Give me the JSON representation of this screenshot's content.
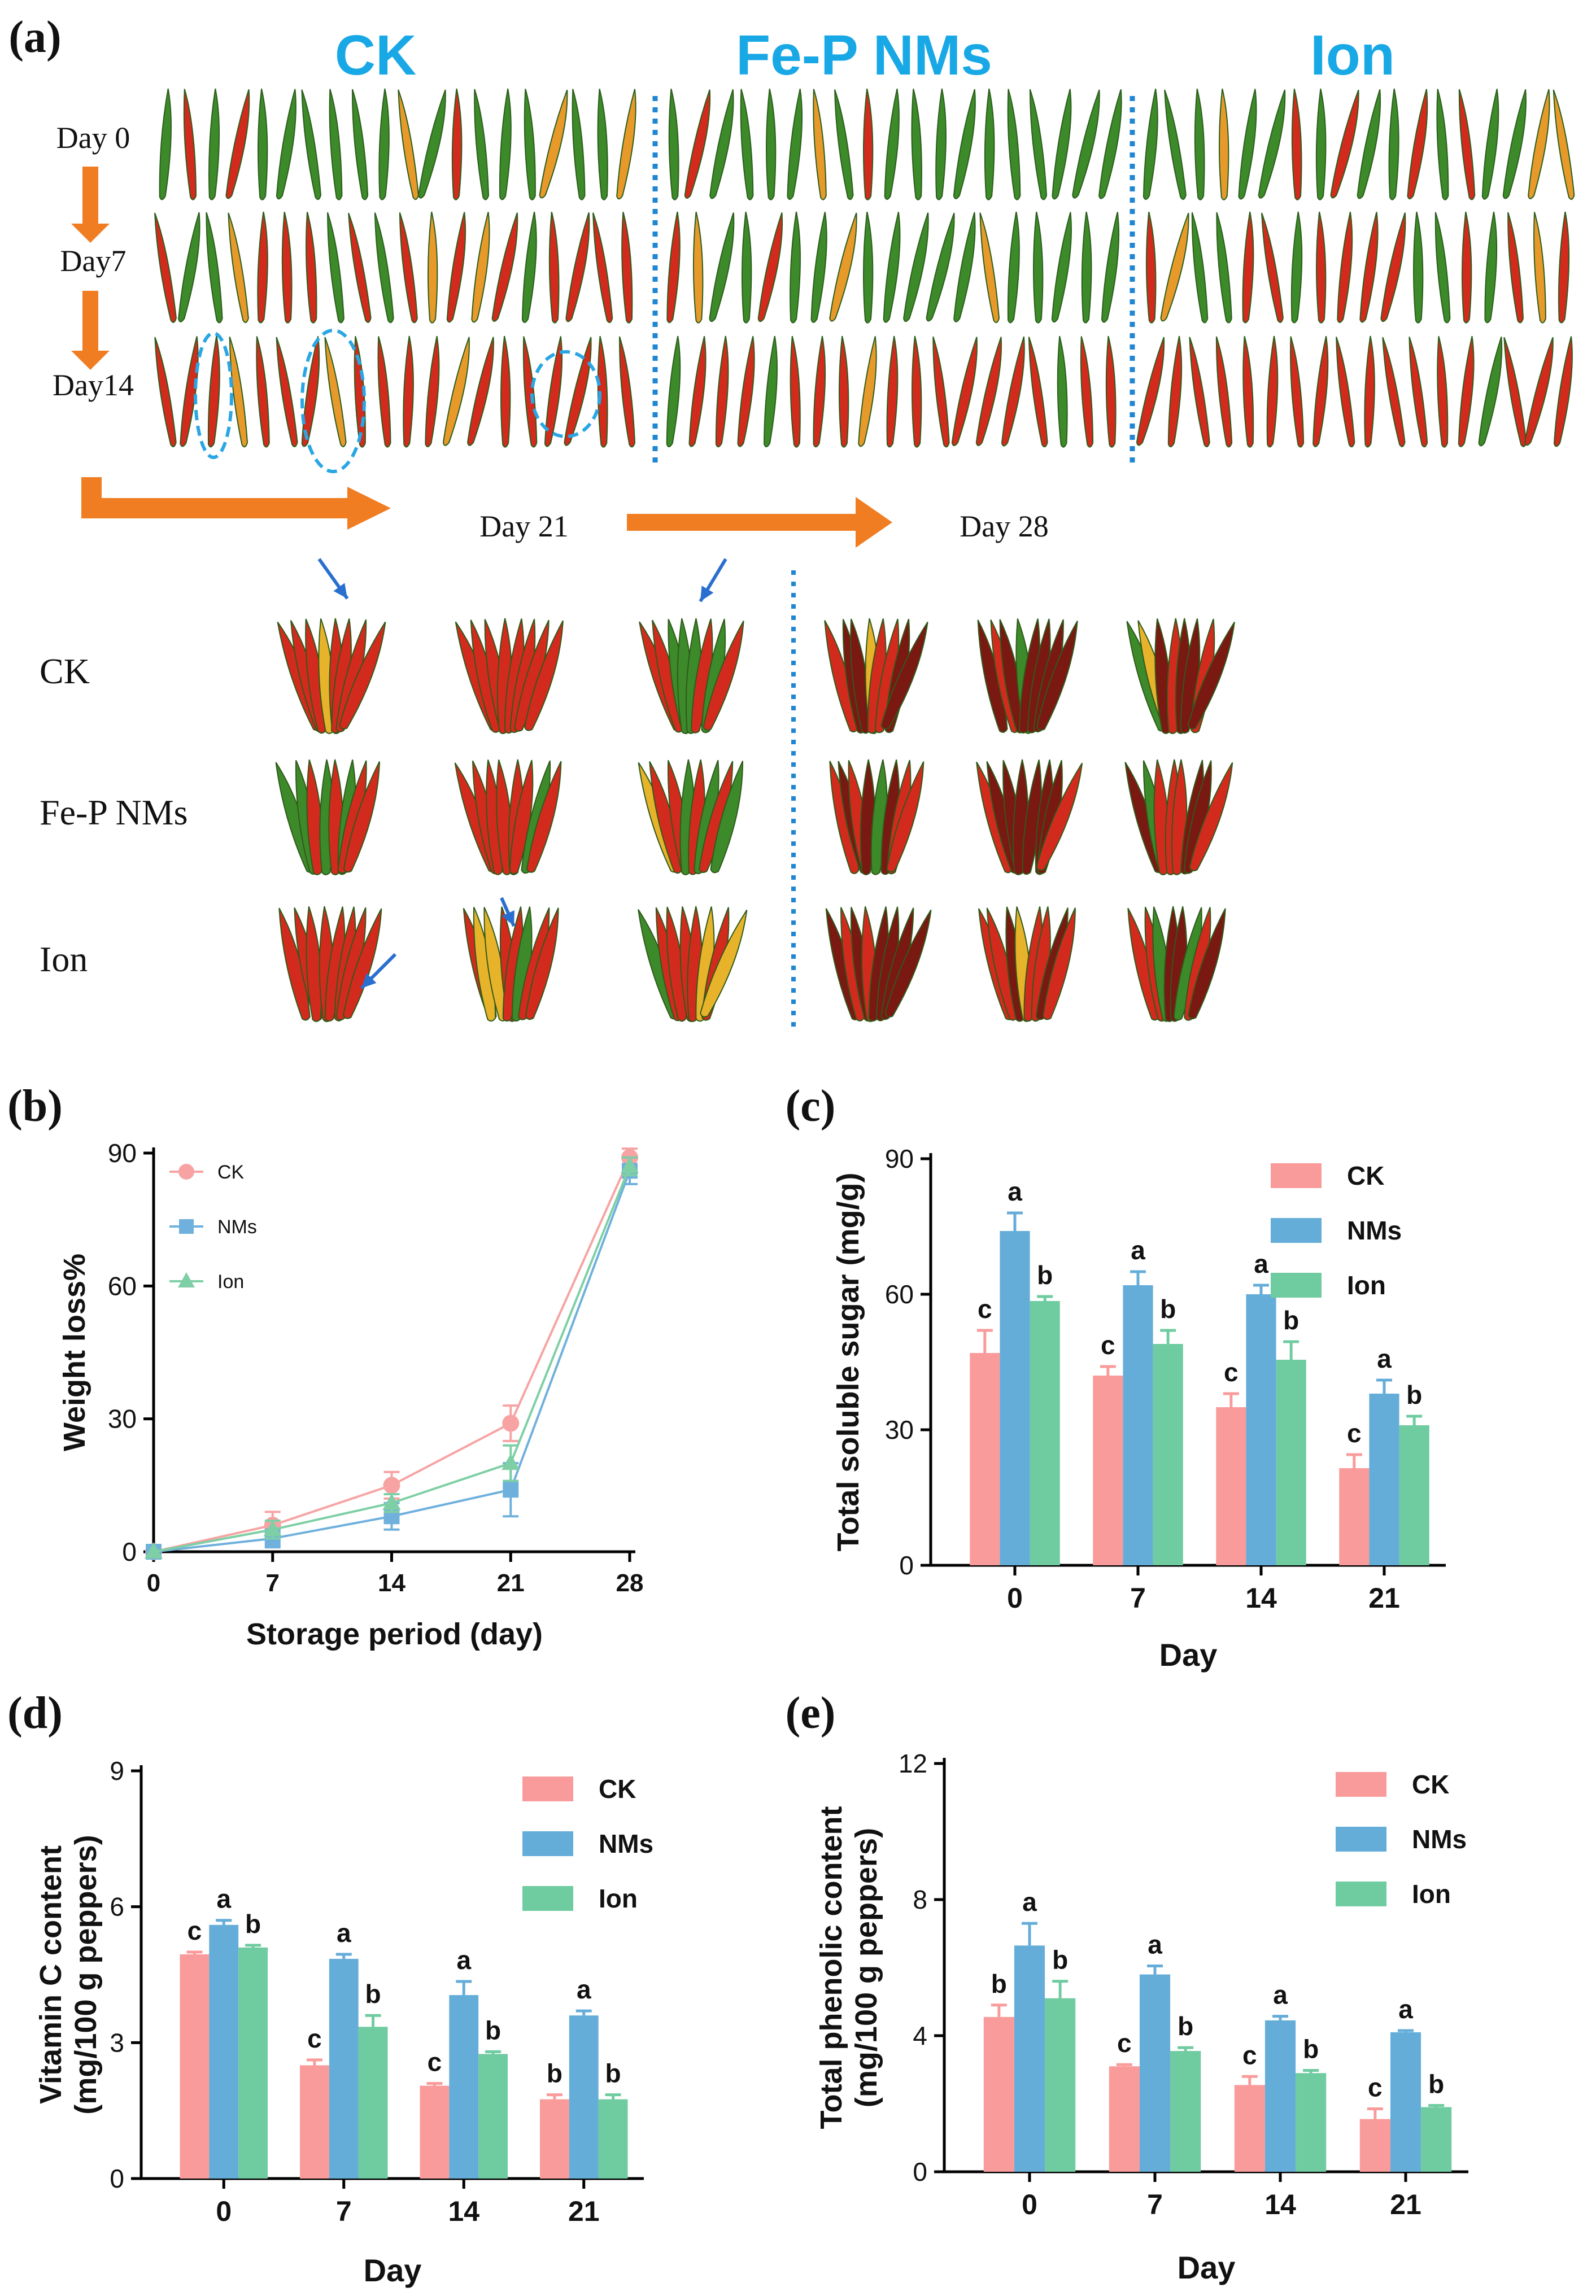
{
  "panel_a": {
    "label": "(a)",
    "groups": [
      "CK",
      "Fe-P NMs",
      "Ion"
    ],
    "day_rows": [
      "Day 0",
      "Day7",
      "Day14"
    ],
    "later_days": [
      "Day 21",
      "Day 28"
    ],
    "sample_rows": [
      "CK",
      "Fe-P NMs",
      "Ion"
    ],
    "colors": {
      "title": "#19a8e6",
      "arrow": "#f07d22",
      "divider": "#1f86d2",
      "pepper_red": "#d32a1e",
      "pepper_green": "#3d8a2a"
    }
  },
  "chart_data": [
    {
      "panel": "(b)",
      "type": "line",
      "title": "",
      "xlabel": "Storage period (day)",
      "ylabel": "Weight loss%",
      "x": [
        0,
        7,
        14,
        21,
        28
      ],
      "xlim": [
        0,
        28
      ],
      "ylim": [
        0,
        90
      ],
      "yticks": [
        0,
        30,
        60,
        90
      ],
      "legend": "top-left",
      "series": [
        {
          "name": "CK",
          "color": "#f7a3a3",
          "marker": "circle",
          "values": [
            0,
            6,
            15,
            29,
            89
          ],
          "err": [
            0,
            3,
            3,
            4,
            2
          ]
        },
        {
          "name": "NMs",
          "color": "#6fb0dc",
          "marker": "square",
          "values": [
            0,
            3,
            8,
            14,
            86
          ],
          "err": [
            0,
            2,
            3,
            6,
            3
          ]
        },
        {
          "name": "Ion",
          "color": "#7ecfa5",
          "marker": "triangle",
          "values": [
            0,
            5,
            11,
            20,
            87
          ],
          "err": [
            0,
            2,
            2,
            4,
            2
          ]
        }
      ]
    },
    {
      "panel": "(c)",
      "type": "bar",
      "title": "",
      "xlabel": "Day",
      "ylabel": "Total soluble sugar (mg/g)",
      "categories": [
        "0",
        "7",
        "14",
        "21"
      ],
      "ylim": [
        0,
        90
      ],
      "yticks": [
        0,
        30,
        60,
        90
      ],
      "legend": "top-right",
      "series": [
        {
          "name": "CK",
          "color": "#fa9b9b",
          "values": [
            47,
            42,
            35,
            21.5
          ],
          "err": [
            5,
            2,
            3,
            3
          ],
          "letters": [
            "c",
            "c",
            "c",
            "c"
          ]
        },
        {
          "name": "NMs",
          "color": "#65add9",
          "values": [
            74,
            62,
            60,
            38
          ],
          "err": [
            4,
            3,
            2,
            3
          ],
          "letters": [
            "a",
            "a",
            "a",
            "a"
          ]
        },
        {
          "name": "Ion",
          "color": "#6fcba0",
          "values": [
            58.5,
            49,
            45.5,
            31
          ],
          "err": [
            1,
            3,
            4,
            2
          ],
          "letters": [
            "b",
            "b",
            "b",
            "b"
          ]
        }
      ]
    },
    {
      "panel": "(d)",
      "type": "bar",
      "title": "",
      "xlabel": "Day",
      "ylabel": [
        "Vitamin C content",
        "(mg/100 g peppers)"
      ],
      "categories": [
        "0",
        "7",
        "14",
        "21"
      ],
      "ylim": [
        0,
        9
      ],
      "yticks": [
        0,
        3,
        6,
        9
      ],
      "legend": "top-right",
      "series": [
        {
          "name": "CK",
          "color": "#fa9b9b",
          "values": [
            4.95,
            2.5,
            2.05,
            1.75
          ],
          "err": [
            0.05,
            0.12,
            0.05,
            0.1
          ],
          "letters": [
            "c",
            "c",
            "c",
            "b"
          ]
        },
        {
          "name": "NMs",
          "color": "#65add9",
          "values": [
            5.6,
            4.85,
            4.05,
            3.6
          ],
          "err": [
            0.1,
            0.1,
            0.3,
            0.1
          ],
          "letters": [
            "a",
            "a",
            "a",
            "a"
          ]
        },
        {
          "name": "Ion",
          "color": "#6fcba0",
          "values": [
            5.1,
            3.35,
            2.75,
            1.75
          ],
          "err": [
            0.05,
            0.25,
            0.05,
            0.1
          ],
          "letters": [
            "b",
            "b",
            "b",
            "b"
          ]
        }
      ]
    },
    {
      "panel": "(e)",
      "type": "bar",
      "title": "",
      "xlabel": "Day",
      "ylabel": [
        "Total phenolic content",
        "(mg/100 g peppers)"
      ],
      "categories": [
        "0",
        "7",
        "14",
        "21"
      ],
      "ylim": [
        0,
        12
      ],
      "yticks": [
        0,
        4,
        8,
        12
      ],
      "legend": "top-right",
      "series": [
        {
          "name": "CK",
          "color": "#fa9b9b",
          "values": [
            4.55,
            3.1,
            2.55,
            1.55
          ],
          "err": [
            0.35,
            0.05,
            0.25,
            0.3
          ],
          "letters": [
            "b",
            "c",
            "c",
            "c"
          ]
        },
        {
          "name": "NMs",
          "color": "#65add9",
          "values": [
            6.65,
            5.8,
            4.45,
            4.1
          ],
          "err": [
            0.65,
            0.25,
            0.12,
            0.05
          ],
          "letters": [
            "a",
            "a",
            "a",
            "a"
          ]
        },
        {
          "name": "Ion",
          "color": "#6fcba0",
          "values": [
            5.1,
            3.55,
            2.9,
            1.9
          ],
          "err": [
            0.5,
            0.1,
            0.08,
            0.05
          ],
          "letters": [
            "b",
            "b",
            "b",
            "b"
          ]
        }
      ]
    }
  ]
}
